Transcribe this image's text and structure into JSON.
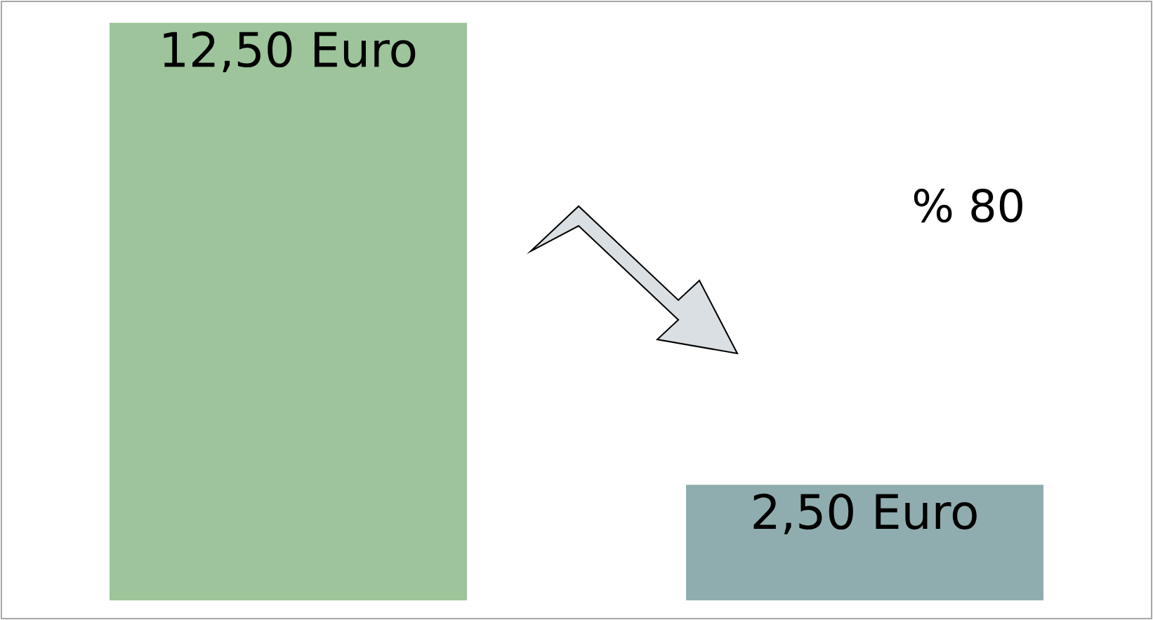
{
  "chart_data": {
    "type": "bar",
    "categories": [
      null,
      null
    ],
    "values": [
      12.5,
      2.5
    ],
    "colors": [
      "#9dc49b",
      "#8fadae"
    ],
    "value_labels": [
      "12,50 Euro",
      "2,50 Euro"
    ],
    "annotations": [
      "% 80"
    ]
  }
}
